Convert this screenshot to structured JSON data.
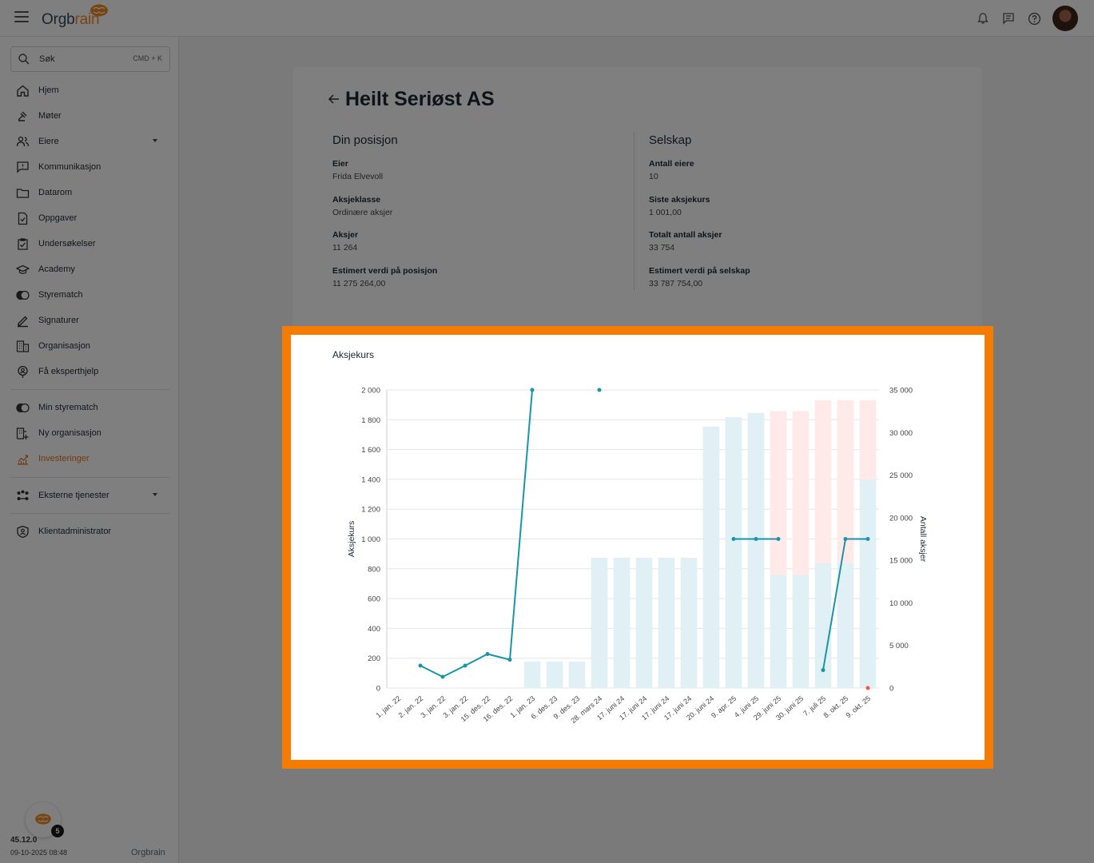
{
  "header": {
    "logo_text": "Orgbrain",
    "logo_prefix": "Orgb",
    "logo_accent": "rain",
    "icons": [
      "bell-icon",
      "chat-icon",
      "help-icon"
    ],
    "accent_color": "#f08a23"
  },
  "sidebar": {
    "search": {
      "label": "Søk",
      "shortcut": "CMD + K"
    },
    "items": [
      {
        "label": "Hjem",
        "icon": "home-icon"
      },
      {
        "label": "Møter",
        "icon": "gavel-icon"
      },
      {
        "label": "Eiere",
        "icon": "people-icon",
        "expandable": true
      },
      {
        "label": "Kommunikasjon",
        "icon": "message-icon"
      },
      {
        "label": "Datarom",
        "icon": "folder-icon"
      },
      {
        "label": "Oppgaver",
        "icon": "task-icon"
      },
      {
        "label": "Undersøkelser",
        "icon": "survey-icon"
      },
      {
        "label": "Academy",
        "icon": "academy-icon"
      },
      {
        "label": "Styrematch",
        "icon": "match-icon"
      },
      {
        "label": "Signaturer",
        "icon": "signature-icon"
      },
      {
        "label": "Organisasjon",
        "icon": "organization-icon"
      },
      {
        "label": "Få eksperthjelp",
        "icon": "expert-icon"
      }
    ],
    "items2": [
      {
        "label": "Min styrematch",
        "icon": "match-icon"
      },
      {
        "label": "Ny organisasjon",
        "icon": "new-organization-icon"
      },
      {
        "label": "Investeringer",
        "icon": "investment-icon",
        "active": true
      }
    ],
    "items3": [
      {
        "label": "Eksterne tjenester",
        "icon": "external-services-icon",
        "expandable": true
      }
    ],
    "items4": [
      {
        "label": "Klientadministrator",
        "icon": "client-admin-icon"
      }
    ],
    "footer": {
      "badge_count": "5",
      "version": "45.12.0",
      "datetime": "09-10-2025 08:48",
      "logo_text": "Orgbrain"
    }
  },
  "page": {
    "title": "Heilt Seriøst AS",
    "position": {
      "heading": "Din posisjon",
      "fields": [
        {
          "label": "Eier",
          "value": "Frida Elvevoll"
        },
        {
          "label": "Aksjeklasse",
          "value": "Ordinære aksjer"
        },
        {
          "label": "Aksjer",
          "value": "11 264"
        },
        {
          "label": "Estimert verdi på posisjon",
          "value": "11 275 264,00"
        }
      ]
    },
    "company": {
      "heading": "Selskap",
      "fields": [
        {
          "label": "Antall eiere",
          "value": "10"
        },
        {
          "label": "Siste aksjekurs",
          "value": "1 001,00"
        },
        {
          "label": "Totalt antall aksjer",
          "value": "33 754"
        },
        {
          "label": "Estimert verdi på selskap",
          "value": "33 787 754,00"
        }
      ]
    }
  },
  "chart_data": {
    "type": "bar",
    "title": "Aksjekurs",
    "ylabel": "Aksjekurs",
    "y2label": "Antall aksjer",
    "ylim": [
      0,
      2000
    ],
    "y2lim": [
      0,
      35000
    ],
    "yticks": [
      "0",
      "200",
      "400",
      "600",
      "800",
      "1 000",
      "1 200",
      "1 400",
      "1 600",
      "1 800",
      "2 000"
    ],
    "y2ticks": [
      "0",
      "5 000",
      "10 000",
      "15 000",
      "20 000",
      "25 000",
      "30 000",
      "35 000"
    ],
    "grid": true,
    "categories": [
      "1. jan. 22",
      "2. jan. 22",
      "3. jan. 22",
      "3. jan. 22",
      "15. des. 22",
      "16. des. 22",
      "1. jan. 23",
      "6. des. 23",
      "9. des. 23",
      "28. mars 24",
      "17. juni 24",
      "17. juni 24",
      "17. juni 24",
      "17. juni 24",
      "20. juni 24",
      "9. apr. 25",
      "4. juni 25",
      "29. juni 25",
      "30. juni 25",
      "7. juli 25",
      "8. okt. 25",
      "9. okt. 25"
    ],
    "series": [
      {
        "kind": "bar",
        "axis": "right",
        "color": "#e0f0f4",
        "values": [
          0,
          0,
          50,
          0,
          0,
          0,
          3100,
          3100,
          3100,
          15300,
          15300,
          15300,
          15300,
          15300,
          30700,
          31800,
          32300,
          13300,
          13300,
          14700,
          14700,
          24500
        ]
      },
      {
        "kind": "bar",
        "axis": "right",
        "color": "#ffe9e9",
        "stacked": true,
        "values": [
          0,
          0,
          0,
          0,
          0,
          0,
          0,
          0,
          0,
          0,
          0,
          0,
          0,
          0,
          0,
          0,
          0,
          19200,
          19200,
          19100,
          19100,
          9300
        ]
      },
      {
        "kind": "line",
        "axis": "left",
        "color": "#1a95a6",
        "values": [
          null,
          150,
          75,
          150,
          228,
          190,
          2000,
          null,
          null,
          2000,
          null,
          null,
          null,
          null,
          null,
          1000,
          1000,
          1000,
          null,
          120,
          1000,
          1000
        ]
      }
    ],
    "breaks_after_index": [
      6,
      9
    ],
    "marker": {
      "index": 21,
      "value": 0,
      "color": "#ef5350"
    }
  }
}
